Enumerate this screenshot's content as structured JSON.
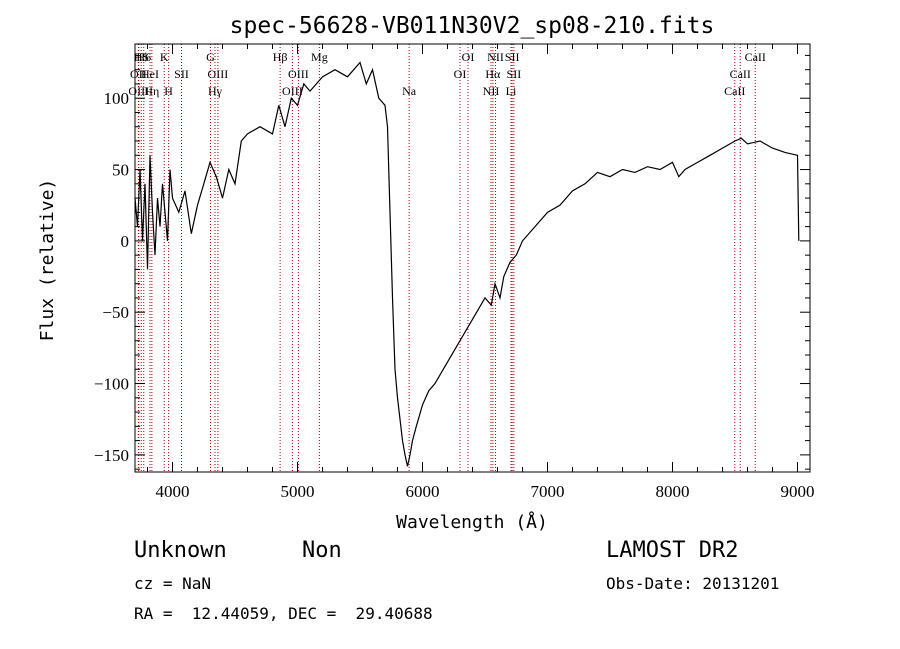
{
  "chart_data": {
    "type": "line",
    "title": "spec-56628-VB011N30V2_sp08-210.fits",
    "xlabel": "Wavelength (Å)",
    "ylabel": "Flux (relative)",
    "xlim": [
      3700,
      9100
    ],
    "ylim": [
      -162,
      138
    ],
    "xticks": [
      4000,
      5000,
      6000,
      7000,
      8000,
      9000
    ],
    "yticks": [
      -150,
      -100,
      -50,
      0,
      50,
      100
    ],
    "grid": false,
    "series": [
      {
        "x": [
          3700,
          3720,
          3740,
          3760,
          3780,
          3800,
          3820,
          3840,
          3860,
          3880,
          3900,
          3920,
          3940,
          3960,
          3980,
          4000,
          4050,
          4100,
          4150,
          4200,
          4250,
          4300,
          4350,
          4400,
          4450,
          4500,
          4550,
          4600,
          4700,
          4800,
          4850,
          4900,
          4950,
          5000,
          5050,
          5100,
          5200,
          5300,
          5400,
          5500,
          5550,
          5600,
          5650,
          5700,
          5720,
          5740,
          5760,
          5780,
          5800,
          5820,
          5840,
          5860,
          5880,
          5900,
          5920,
          5950,
          6000,
          6050,
          6100,
          6200,
          6300,
          6400,
          6500,
          6550,
          6580,
          6620,
          6650,
          6700,
          6750,
          6800,
          6900,
          7000,
          7100,
          7200,
          7300,
          7400,
          7500,
          7600,
          7700,
          7800,
          7900,
          8000,
          8050,
          8100,
          8200,
          8300,
          8400,
          8500,
          8550,
          8600,
          8700,
          8800,
          8900,
          9000,
          9010
        ],
        "y": [
          30,
          10,
          50,
          0,
          40,
          -20,
          60,
          20,
          -10,
          30,
          10,
          40,
          20,
          0,
          50,
          30,
          20,
          35,
          5,
          25,
          40,
          55,
          45,
          30,
          50,
          40,
          70,
          75,
          80,
          75,
          95,
          80,
          100,
          95,
          110,
          105,
          115,
          120,
          115,
          125,
          110,
          120,
          100,
          95,
          80,
          20,
          -40,
          -90,
          -110,
          -125,
          -140,
          -150,
          -158,
          -150,
          -140,
          -130,
          -115,
          -105,
          -100,
          -85,
          -70,
          -55,
          -40,
          -45,
          -30,
          -40,
          -25,
          -15,
          -10,
          0,
          10,
          20,
          25,
          35,
          40,
          48,
          45,
          50,
          48,
          52,
          50,
          55,
          45,
          50,
          55,
          60,
          65,
          70,
          72,
          68,
          70,
          65,
          62,
          60,
          0
        ]
      }
    ],
    "line_markers": [
      {
        "label": "H$",
        "w": 3750,
        "level": 0
      },
      {
        "label": "H6",
        "w": 3770,
        "level": 0
      },
      {
        "label": "OII",
        "w": 3727,
        "level": 1
      },
      {
        "label": "HeI",
        "w": 3820,
        "level": 1
      },
      {
        "label": "OIII",
        "w": 3730,
        "level": 2
      },
      {
        "label": "Hη",
        "w": 3835,
        "level": 2
      },
      {
        "label": "K",
        "w": 3934,
        "level": 0
      },
      {
        "label": "SII",
        "w": 4072,
        "level": 1
      },
      {
        "label": "H",
        "w": 3969,
        "level": 2
      },
      {
        "label": "G",
        "w": 4304,
        "level": 0
      },
      {
        "label": "OIII",
        "w": 4363,
        "level": 1
      },
      {
        "label": "Hγ",
        "w": 4340,
        "level": 2
      },
      {
        "label": "Hβ",
        "w": 4861,
        "level": 0
      },
      {
        "label": "OIII",
        "w": 5007,
        "level": 1
      },
      {
        "label": "OIII",
        "w": 4959,
        "level": 2
      },
      {
        "label": "Mg",
        "w": 5175,
        "level": 0
      },
      {
        "label": "Na",
        "w": 5893,
        "level": 2
      },
      {
        "label": "OI",
        "w": 6364,
        "level": 0
      },
      {
        "label": "OI",
        "w": 6300,
        "level": 1
      },
      {
        "label": "NII",
        "w": 6584,
        "level": 0
      },
      {
        "label": "Hα",
        "w": 6563,
        "level": 1
      },
      {
        "label": "NII",
        "w": 6548,
        "level": 2
      },
      {
        "label": "SII",
        "w": 6717,
        "level": 0
      },
      {
        "label": "SII",
        "w": 6731,
        "level": 1
      },
      {
        "label": "Li",
        "w": 6708,
        "level": 2
      },
      {
        "label": "CaII",
        "w": 8662,
        "level": 0
      },
      {
        "label": "CaII",
        "w": 8542,
        "level": 1
      },
      {
        "label": "CaII",
        "w": 8498,
        "level": 2
      }
    ]
  },
  "info": {
    "classification": "Unknown",
    "subclass": "Non",
    "survey": "LAMOST DR2",
    "cz": "cz = NaN",
    "obs_date": "Obs-Date: 20131201",
    "coords": "RA =  12.44059, DEC =  29.40688"
  },
  "colors": {
    "line": "#000000",
    "marker": "#b00000",
    "background": "#ffffff"
  }
}
